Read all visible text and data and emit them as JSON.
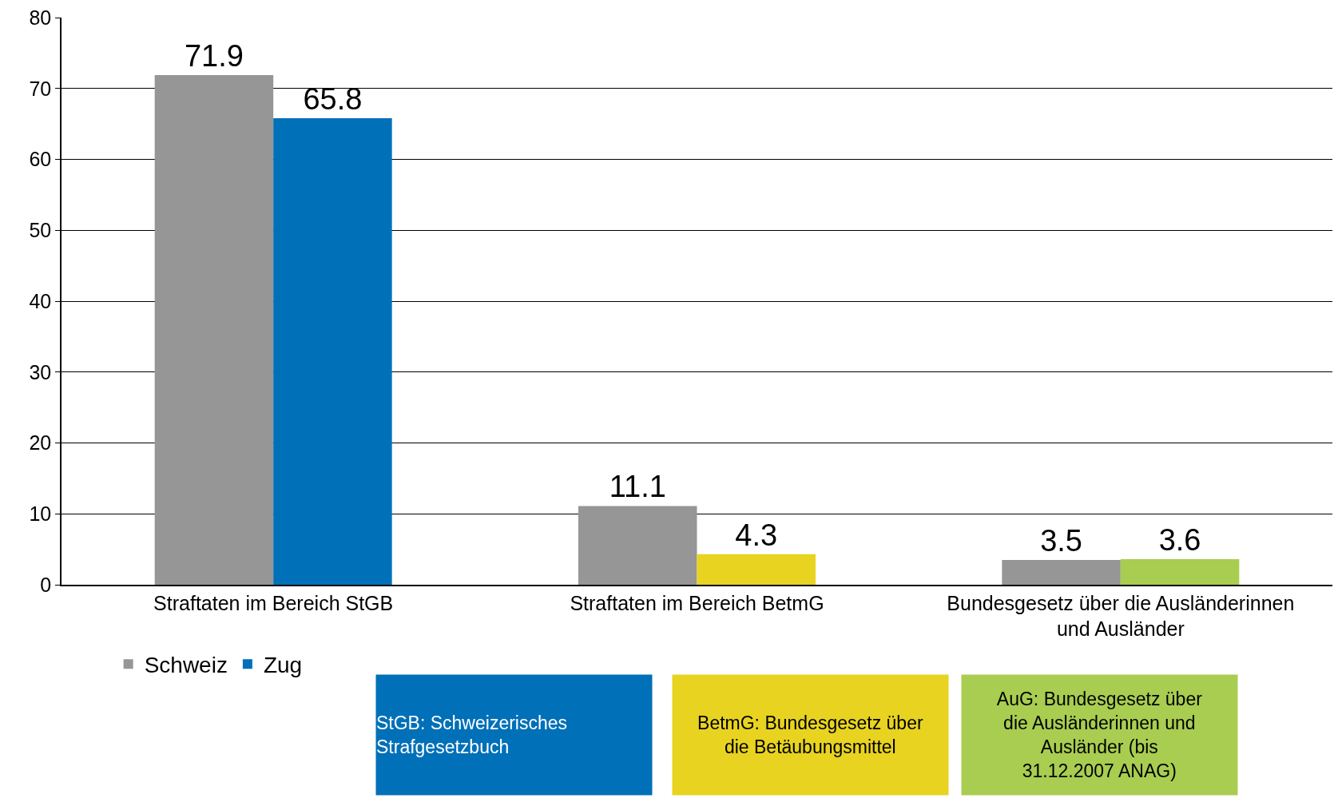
{
  "chart_data": {
    "type": "bar",
    "categories": [
      "Straftaten im Bereich StGB",
      "Straftaten im Bereich BetmG",
      "Bundesgesetz über die Ausländerinnen und Ausländer"
    ],
    "series": [
      {
        "name": "Schweiz",
        "color": "#969696",
        "values": [
          71.9,
          11.1,
          3.5
        ]
      },
      {
        "name": "Zug",
        "colors": [
          "#0070b8",
          "#e8d320",
          "#a8cd50"
        ],
        "values": [
          65.8,
          4.3,
          3.6
        ]
      }
    ],
    "ylim": [
      0,
      80
    ],
    "yticks": [
      0,
      10,
      20,
      30,
      40,
      50,
      60,
      70,
      80
    ],
    "grid": "y",
    "legend": "bottom left",
    "data_labels": true,
    "annotations": [
      "StGB: Schweizerisches Strafgesetzbuch",
      "BetmG: Bundesgesetz über die Betäubungsmittel",
      "AuG: Bundesgesetz über die Ausländerinnen und Ausländer (bis 31.12.2007 ANAG)"
    ]
  }
}
